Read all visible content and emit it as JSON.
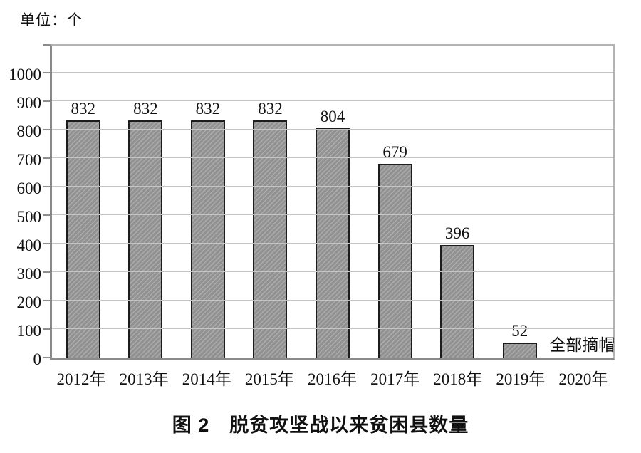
{
  "chart_data": {
    "type": "bar",
    "title": "图 2　脱贫攻坚战以来贫困县数量",
    "unit_label": "单位：个",
    "categories": [
      "2012年",
      "2013年",
      "2014年",
      "2015年",
      "2016年",
      "2017年",
      "2018年",
      "2019年",
      "2020年"
    ],
    "values": [
      832,
      832,
      832,
      832,
      804,
      679,
      396,
      52,
      0
    ],
    "value_labels": [
      "832",
      "832",
      "832",
      "832",
      "804",
      "679",
      "396",
      "52",
      ""
    ],
    "annotation": {
      "text": "全部摘帽",
      "category": "2020年",
      "category_index": 8
    },
    "xlabel": "",
    "ylabel": "",
    "ylim": [
      0,
      1000
    ],
    "y_ticks": [
      0,
      100,
      200,
      300,
      400,
      500,
      600,
      700,
      800,
      900,
      1000
    ],
    "grid": true,
    "legend": "none",
    "colors": {
      "background": "#ffffff",
      "text": "#111111",
      "bar_fill": "#919191",
      "bar_hatch_light": "#ababab",
      "bar_border": "#1c1c1c",
      "gridline": "#c4c4c4",
      "axis": "#8a8a8a"
    }
  }
}
